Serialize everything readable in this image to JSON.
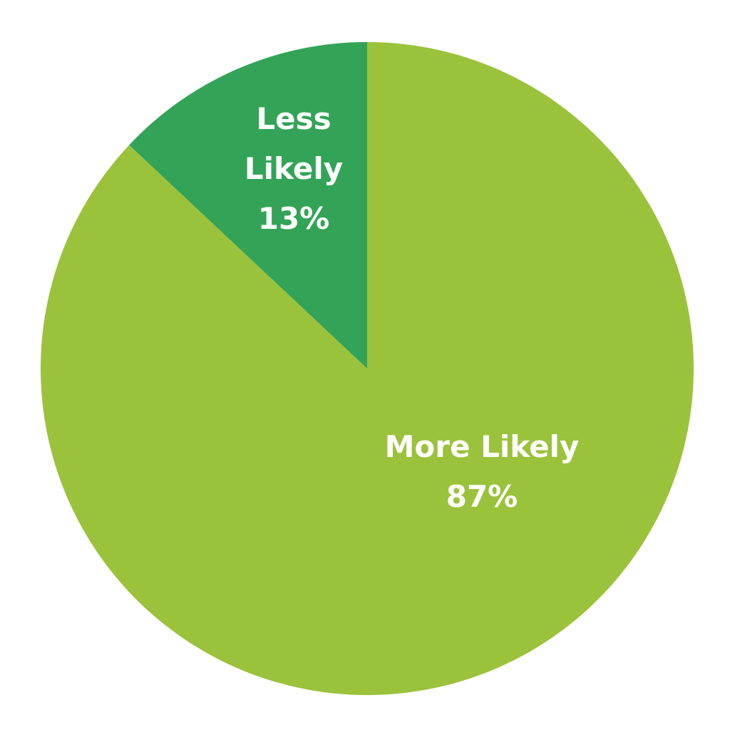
{
  "chart_data": {
    "type": "pie",
    "categories": [
      "More Likely",
      "Less Likely"
    ],
    "values": [
      87,
      13
    ],
    "value_labels": [
      "87%",
      "13%"
    ],
    "colors": [
      "#9bc23b",
      "#33a457"
    ]
  }
}
